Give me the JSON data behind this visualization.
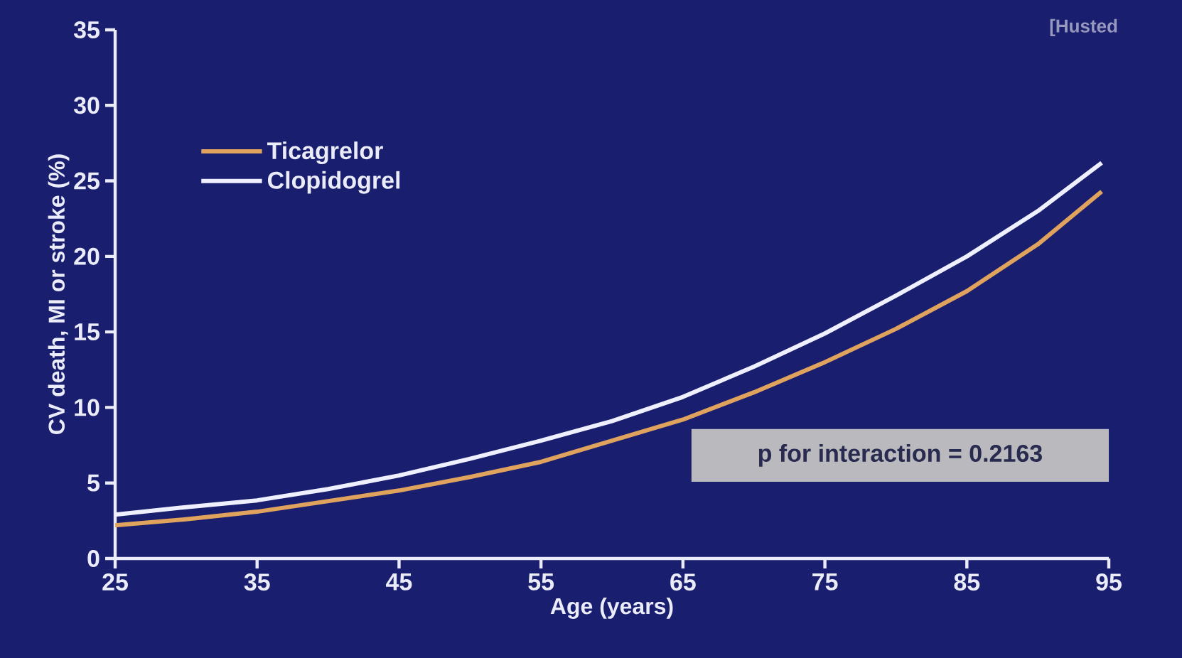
{
  "chart_data": {
    "type": "line",
    "xlabel": "Age (years)",
    "ylabel": "CV death, MI or stroke (%)",
    "x": [
      25,
      30,
      35,
      40,
      45,
      50,
      55,
      60,
      65,
      70,
      75,
      80,
      85,
      90,
      94.5
    ],
    "series": [
      {
        "name": "Ticagrelor",
        "color": "#e0a35e",
        "values": [
          2.2,
          2.6,
          3.1,
          3.8,
          4.5,
          5.4,
          6.4,
          7.8,
          9.2,
          11.0,
          13.0,
          15.2,
          17.7,
          20.8,
          24.3
        ]
      },
      {
        "name": "Clopidogrel",
        "color": "#eef0ff",
        "values": [
          2.9,
          3.4,
          3.85,
          4.6,
          5.5,
          6.6,
          7.8,
          9.1,
          10.7,
          12.7,
          14.9,
          17.4,
          20.0,
          23.0,
          26.2
        ]
      }
    ],
    "xlim": [
      25,
      95
    ],
    "ylim": [
      0,
      35
    ],
    "xticks": [
      25,
      35,
      45,
      55,
      65,
      75,
      85,
      95
    ],
    "yticks": [
      0,
      5,
      10,
      15,
      20,
      25,
      30,
      35
    ],
    "legend": "top left",
    "grid": false,
    "annotations": [
      "p for interaction = 0.2163",
      "[Husted"
    ]
  }
}
